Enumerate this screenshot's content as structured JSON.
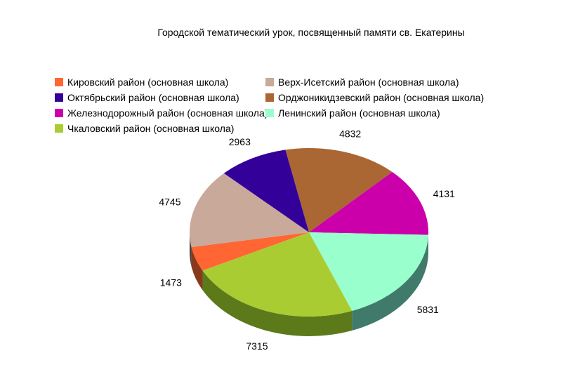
{
  "chart_data": {
    "type": "pie",
    "title": "Городской тематический урок, посвященный памяти св. Екатерины",
    "series": [
      {
        "name": "Кировский район (основная школа)",
        "value": 1473,
        "color": "#ff6633",
        "side": "#8a3a1c"
      },
      {
        "name": "Верх-Исетский район (основная школа)",
        "value": 4745,
        "color": "#c9a99a",
        "side": "#4a3f3a"
      },
      {
        "name": "Октябрьский район (основная школа)",
        "value": 2963,
        "color": "#330099",
        "side": "#1a004d"
      },
      {
        "name": "Орджоникидзевский район (основная школа)",
        "value": 4832,
        "color": "#aa6633",
        "side": "#5a3318"
      },
      {
        "name": "Железнодорожный район (основная школа)",
        "value": 4131,
        "color": "#cc00aa",
        "side": "#6a0058"
      },
      {
        "name": "Ленинский район (основная школа)",
        "value": 5831,
        "color": "#99ffcc",
        "side": "#3f7a6a"
      },
      {
        "name": "Чкаловский район (основная школа)",
        "value": 7315,
        "color": "#aacc33",
        "side": "#5d7a1a"
      }
    ],
    "legend_order": [
      0,
      1,
      2,
      3,
      4,
      5,
      6
    ],
    "start_angle_deg": 153,
    "legend_position": "top",
    "three_d": true
  }
}
